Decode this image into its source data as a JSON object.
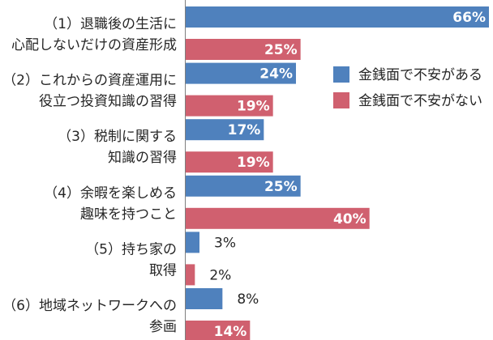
{
  "chart_data": {
    "type": "bar",
    "orientation": "horizontal",
    "categories": [
      [
        "（1）退職後の生活に",
        "心配しないだけの資産形成"
      ],
      [
        "（2）これからの資産運用に",
        "役立つ投資知識の習得"
      ],
      [
        "（3）税制に関する",
        "知識の習得"
      ],
      [
        "（4）余暇を楽しめる",
        "趣味を持つこと"
      ],
      [
        "（5）持ち家の",
        "取得"
      ],
      [
        "（6）地域ネットワークへの",
        "参画"
      ]
    ],
    "series": [
      {
        "name": "金銭面で不安がある",
        "color": "#4f81bd",
        "values": [
          66,
          24,
          17,
          25,
          3,
          8
        ]
      },
      {
        "name": "金銭面で不安がない",
        "color": "#d0606f",
        "values": [
          25,
          19,
          19,
          40,
          2,
          14
        ]
      }
    ],
    "value_suffix": "%",
    "xlim": [
      0,
      66
    ],
    "grid": false,
    "legend_position": "right"
  }
}
